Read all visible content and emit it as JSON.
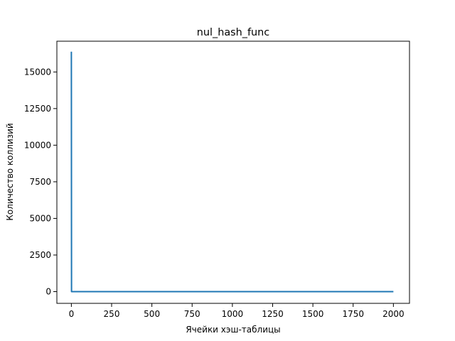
{
  "chart_data": {
    "type": "line",
    "title": "nul_hash_func",
    "xlabel": "Ячейки хэш-таблицы",
    "ylabel": "Количество коллизий",
    "xlim": [
      -90,
      2100
    ],
    "ylim": [
      -800,
      17100
    ],
    "xticks": [
      0,
      250,
      500,
      750,
      1000,
      1250,
      1500,
      1750,
      2000
    ],
    "yticks": [
      0,
      2500,
      5000,
      7500,
      10000,
      12500,
      15000
    ],
    "grid": false,
    "series": [
      {
        "color": "#1f77b4",
        "x": [
          0,
          1,
          2000
        ],
        "y": [
          16384,
          0,
          0
        ]
      }
    ]
  }
}
